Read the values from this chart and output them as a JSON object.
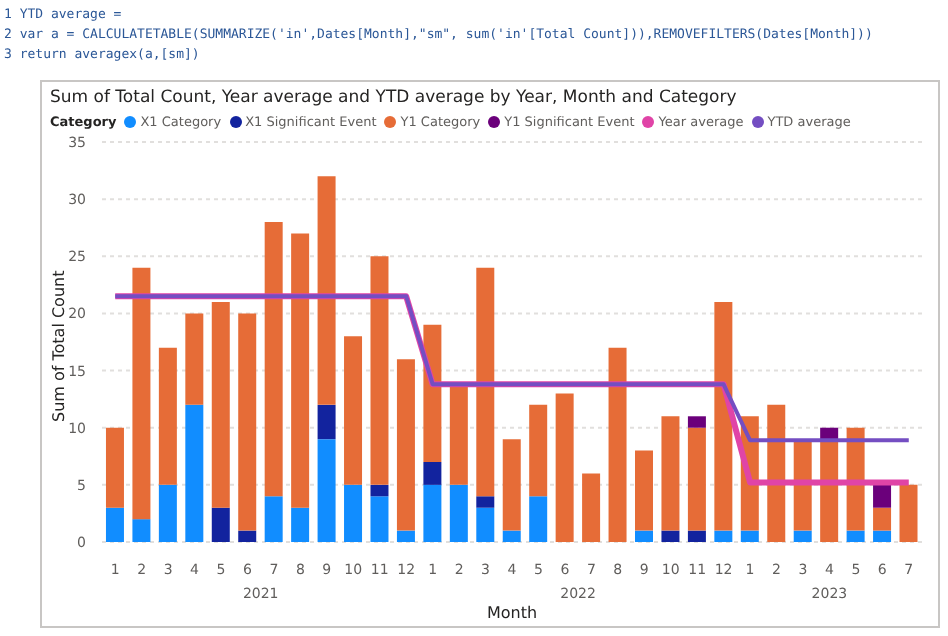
{
  "chart_data": {
    "type": "bar",
    "title": "Sum of Total Count, Year average and YTD average by Year, Month and Category",
    "xlabel": "Month",
    "ylabel": "Sum of Total Count",
    "legend_title": "Category",
    "annotations": [
      "1 YTD average =",
      "2 var a = CALCULATETABLE(SUMMARIZE('in',Dates[Month],\"sm\", sum('in'[Total Count])),REMOVEFILTERS(Dates[Month]))",
      "3 return averagex(a,[sm])",
      "2021",
      "2022",
      "2023"
    ],
    "categories": [
      "1",
      "2",
      "3",
      "4",
      "5",
      "6",
      "7",
      "8",
      "9",
      "10",
      "11",
      "12",
      "1",
      "2",
      "3",
      "4",
      "5",
      "6",
      "7",
      "8",
      "9",
      "10",
      "11",
      "12",
      "1",
      "2",
      "3",
      "4",
      "5",
      "6",
      "7"
    ],
    "stacked": true,
    "series": [
      {
        "name": "X1 Category",
        "color": "#118dff",
        "values": [
          3,
          2,
          5,
          12,
          null,
          null,
          4,
          3,
          9,
          5,
          4,
          1,
          5,
          5,
          3,
          1,
          4,
          null,
          null,
          null,
          1,
          null,
          null,
          1,
          1,
          null,
          1,
          null,
          1,
          1,
          null
        ]
      },
      {
        "name": "X1 Significant Event",
        "color": "#12239e",
        "values": [
          null,
          null,
          null,
          null,
          3,
          1,
          null,
          null,
          3,
          null,
          1,
          null,
          2,
          null,
          1,
          null,
          null,
          null,
          null,
          null,
          null,
          1,
          1,
          null,
          null,
          null,
          null,
          null,
          null,
          null,
          null
        ]
      },
      {
        "name": "Y1 Category",
        "color": "#e66c37",
        "values": [
          7,
          22,
          12,
          8,
          18,
          19,
          24,
          24,
          20,
          13,
          20,
          15,
          12,
          9,
          20,
          8,
          8,
          13,
          6,
          17,
          7,
          10,
          9,
          20,
          10,
          12,
          8,
          9,
          9,
          2,
          5
        ]
      },
      {
        "name": "Y1 Significant Event",
        "color": "#6b007b",
        "values": [
          null,
          null,
          null,
          null,
          null,
          null,
          null,
          null,
          null,
          null,
          null,
          null,
          null,
          null,
          null,
          null,
          null,
          null,
          null,
          null,
          null,
          null,
          1,
          null,
          null,
          null,
          null,
          1,
          null,
          2,
          null
        ]
      },
      {
        "name": "Year average",
        "type": "line",
        "color": "#e044a7",
        "values": [
          21.5,
          21.5,
          21.5,
          21.5,
          21.5,
          21.5,
          21.5,
          21.5,
          21.5,
          21.5,
          21.5,
          21.5,
          13.8,
          13.8,
          13.8,
          13.8,
          13.8,
          13.8,
          13.8,
          13.8,
          13.8,
          13.8,
          13.8,
          13.8,
          5.2,
          5.2,
          5.2,
          5.2,
          5.2,
          5.2,
          5.2
        ]
      },
      {
        "name": "YTD average",
        "type": "line",
        "color": "#744ec2",
        "values": [
          21.5,
          21.5,
          21.5,
          21.5,
          21.5,
          21.5,
          21.5,
          21.5,
          21.5,
          21.5,
          21.5,
          21.5,
          13.8,
          13.8,
          13.8,
          13.8,
          13.8,
          13.8,
          13.8,
          13.8,
          13.8,
          13.8,
          13.8,
          13.8,
          8.9,
          8.9,
          8.9,
          8.9,
          8.9,
          8.9,
          8.9
        ]
      }
    ],
    "ylim": [
      0,
      35
    ],
    "yticks": [
      0,
      5,
      10,
      15,
      20,
      25,
      30,
      35
    ],
    "grid": "y",
    "legend": "top left",
    "marker": "none",
    "line_style": "solid"
  }
}
